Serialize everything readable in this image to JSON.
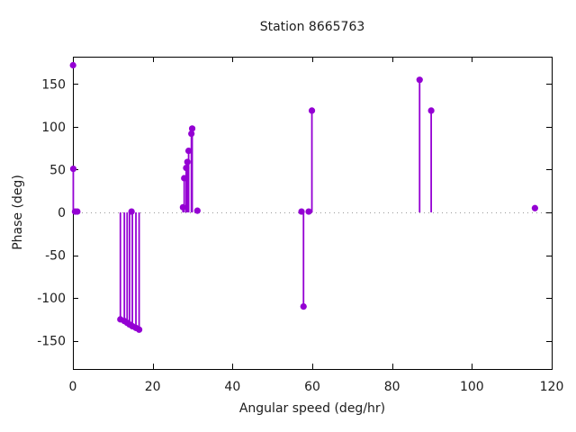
{
  "chart_data": {
    "type": "scatter",
    "style": "impulses+points",
    "title": "Station 8665763",
    "xlabel": "Angular speed (deg/hr)",
    "ylabel": "Phase (deg)",
    "xlim": [
      0,
      120
    ],
    "ylim": [
      -183,
      182
    ],
    "x_ticks": [
      0,
      20,
      40,
      60,
      80,
      100,
      120
    ],
    "y_ticks": [
      -150,
      -100,
      -50,
      0,
      50,
      100,
      150
    ],
    "grid": false,
    "zero_line": true,
    "legend": "none",
    "series_color": "#9400D3",
    "zero_line_color": "#9a9a9a",
    "axis_color": "#000000",
    "text_color": "#1c1c1c",
    "points": [
      {
        "x": 0.04,
        "y": 172,
        "stem": false
      },
      {
        "x": 0.1,
        "y": 51,
        "stem": true
      },
      {
        "x": 0.54,
        "y": 1,
        "stem": false
      },
      {
        "x": 1.1,
        "y": 1,
        "stem": false
      },
      {
        "x": 11.9,
        "y": -125,
        "stem": true
      },
      {
        "x": 12.9,
        "y": -127,
        "stem": true
      },
      {
        "x": 13.6,
        "y": -129,
        "stem": true
      },
      {
        "x": 14.2,
        "y": -131,
        "stem": true
      },
      {
        "x": 14.9,
        "y": -133,
        "stem": true
      },
      {
        "x": 15.8,
        "y": -135,
        "stem": true
      },
      {
        "x": 16.6,
        "y": -137,
        "stem": true
      },
      {
        "x": 14.7,
        "y": 1,
        "stem": false
      },
      {
        "x": 27.6,
        "y": 6,
        "stem": true
      },
      {
        "x": 27.9,
        "y": 40,
        "stem": true
      },
      {
        "x": 28.4,
        "y": 52,
        "stem": true
      },
      {
        "x": 28.7,
        "y": 59,
        "stem": true
      },
      {
        "x": 29.0,
        "y": 72,
        "stem": true
      },
      {
        "x": 29.7,
        "y": 92,
        "stem": true
      },
      {
        "x": 29.9,
        "y": 98,
        "stem": true
      },
      {
        "x": 31.2,
        "y": 2,
        "stem": false
      },
      {
        "x": 57.3,
        "y": 1,
        "stem": false
      },
      {
        "x": 57.8,
        "y": -110,
        "stem": true
      },
      {
        "x": 59.1,
        "y": 1,
        "stem": false
      },
      {
        "x": 59.9,
        "y": 119,
        "stem": true
      },
      {
        "x": 86.9,
        "y": 155,
        "stem": true
      },
      {
        "x": 89.8,
        "y": 119,
        "stem": true
      },
      {
        "x": 115.8,
        "y": 5,
        "stem": false
      }
    ]
  }
}
